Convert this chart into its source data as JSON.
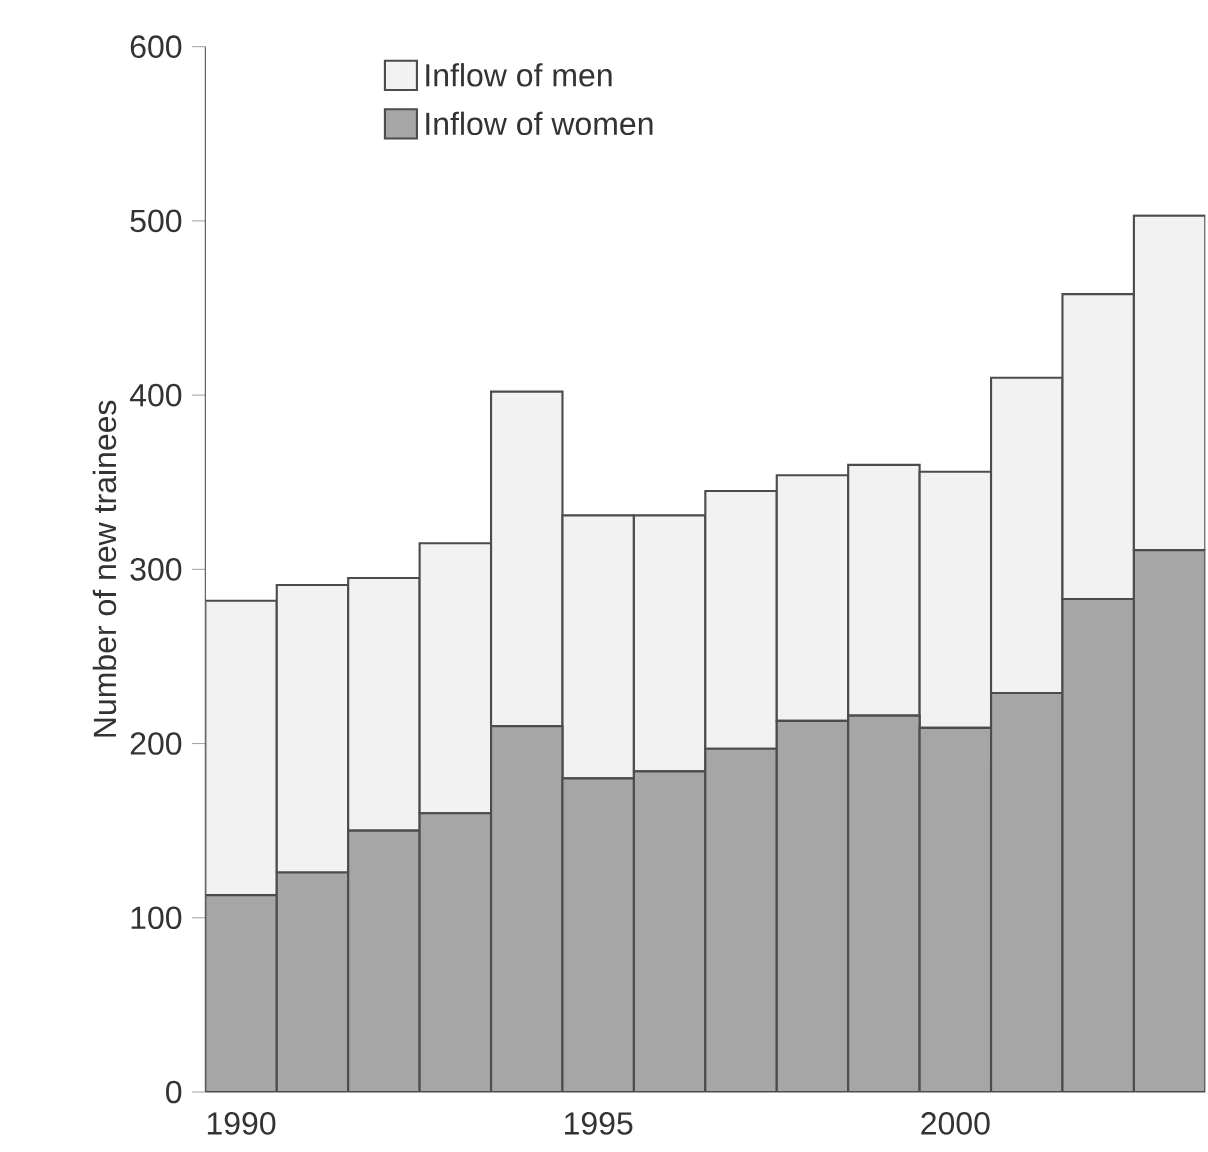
{
  "chart_data": {
    "type": "bar",
    "stacked": true,
    "ylabel": "Number of new trainees",
    "categories": [
      "1990",
      null,
      null,
      null,
      null,
      "1995",
      null,
      null,
      null,
      null,
      "2000",
      null,
      null,
      null
    ],
    "series": [
      {
        "name": "Inflow of women",
        "color": "#a6a6a6",
        "values": [
          113,
          126,
          150,
          160,
          210,
          180,
          184,
          197,
          213,
          216,
          209,
          229,
          283,
          311
        ]
      },
      {
        "name": "Inflow of men",
        "color": "#f2f2f2",
        "values": [
          169,
          165,
          145,
          155,
          192,
          151,
          147,
          148,
          141,
          144,
          147,
          181,
          175,
          192
        ]
      }
    ],
    "ylim": [
      0,
      600
    ],
    "yticks": [
      0,
      100,
      200,
      300,
      400,
      500,
      600
    ],
    "legend": "top"
  }
}
